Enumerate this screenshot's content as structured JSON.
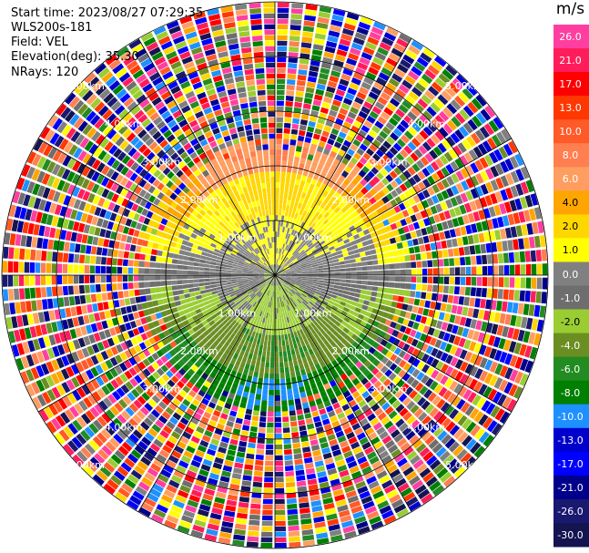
{
  "header": {
    "start_time": "Start time: 2023/08/27 07:29:35",
    "device": "WLS200s-181",
    "field": "Field: VEL",
    "elevation": "Elevation(deg): 35.30",
    "nrays": "NRays: 120"
  },
  "chart_data": {
    "type": "ppi",
    "field": "VEL",
    "unit": "m/s",
    "nrays": 120,
    "ring_labels": [
      "1.00km",
      "2.00km",
      "3.00km",
      "4.00km",
      "5.00km"
    ],
    "colorbar": {
      "ticks": [
        "26.0",
        "21.0",
        "17.0",
        "13.0",
        "10.0",
        "8.0",
        "6.0",
        "4.0",
        "2.0",
        "1.0",
        "0.0",
        "-1.0",
        "-2.0",
        "-4.0",
        "-6.0",
        "-8.0",
        "-10.0",
        "-13.0",
        "-17.0",
        "-21.0",
        "-26.0",
        "-30.0"
      ],
      "colors": [
        "#ff3fa0",
        "#ff1c5a",
        "#ff0000",
        "#ff3700",
        "#ff5a28",
        "#ff7f50",
        "#ff9e60",
        "#ffa500",
        "#ffd700",
        "#ffff00",
        "#808080",
        "#6e6e6e",
        "#9acd32",
        "#6b8e23",
        "#228b22",
        "#008000",
        "#1e90ff",
        "#0000cd",
        "#0000ff",
        "#00008b",
        "#191970",
        "#141450"
      ]
    },
    "wind_field": {
      "description_free": true,
      "upper_half_sign": "positive",
      "lower_half_sign": "negative"
    }
  }
}
